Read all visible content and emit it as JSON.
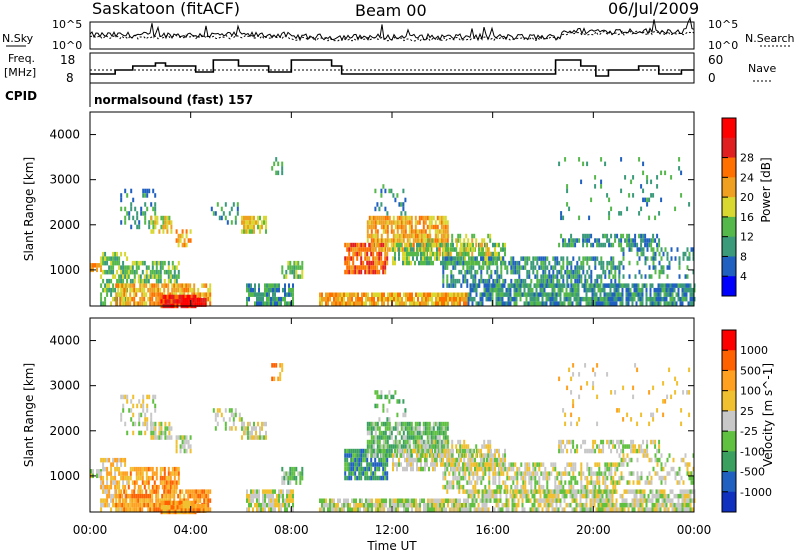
{
  "header": {
    "station": "Saskatoon (fitACF)",
    "beam": "Beam 00",
    "date": "06/Jul/2009"
  },
  "top_panels": {
    "nsky_label": "N.Sky",
    "nsky_ticks": [
      "10^5",
      "10^0"
    ],
    "nsearch_label": "N.Search",
    "nsearch_ticks": [
      "10^5",
      "10^0"
    ],
    "freq_label_1": "Freq.",
    "freq_label_2": "[MHz]",
    "freq_ticks": [
      "18",
      "8"
    ],
    "nave_label": "Nave",
    "nave_ticks": [
      "60",
      "0"
    ],
    "cpid_label": "CPID",
    "cpid_value": "normalsound (fast) 157"
  },
  "chart_data": [
    {
      "type": "heatmap",
      "ylabel": "Slant Range [km]",
      "yticks": [
        "1000",
        "2000",
        "3000",
        "4000"
      ],
      "ylim": [
        200,
        4500
      ],
      "colorbar_label": "Power [dB]",
      "colorbar_ticks": [
        "4",
        "8",
        "12",
        "16",
        "20",
        "24",
        "28"
      ],
      "colors": [
        "#0000ff",
        "#2060c0",
        "#3a9a7a",
        "#55b84a",
        "#d8d830",
        "#f0a020",
        "#ff7000",
        "#e02020",
        "#ff0000"
      ]
    },
    {
      "type": "heatmap",
      "ylabel": "Slant Range [km]",
      "yticks": [
        "1000",
        "2000",
        "3000",
        "4000"
      ],
      "ylim": [
        200,
        4500
      ],
      "colorbar_label": "Velocity [m s^-1]",
      "colorbar_ticks": [
        "1000",
        "500",
        "100",
        "25",
        "-25",
        "-100",
        "-500",
        "-1000"
      ],
      "colors": [
        "#1030c0",
        "#2060c0",
        "#3aa060",
        "#60c040",
        "#c8c8c8",
        "#f0c030",
        "#ffa020",
        "#ff6000",
        "#ff0000"
      ]
    }
  ],
  "xaxis": {
    "ticks": [
      "00:00",
      "04:00",
      "08:00",
      "12:00",
      "16:00",
      "20:00",
      "00:00"
    ],
    "label": "Time UT"
  }
}
